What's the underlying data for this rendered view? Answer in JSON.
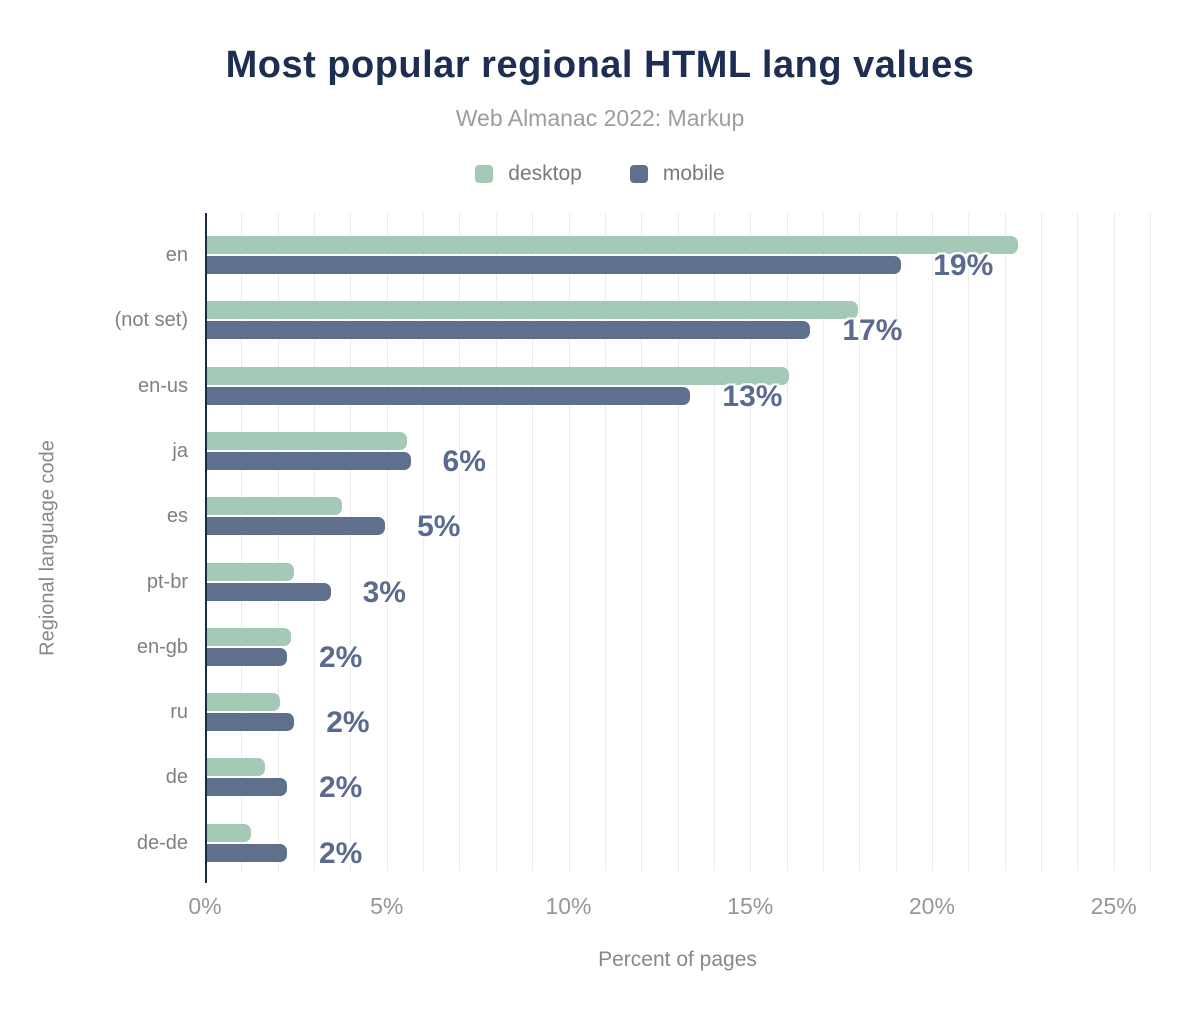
{
  "title": "Most popular regional HTML lang values",
  "subtitle": "Web Almanac 2022: Markup",
  "legend": [
    {
      "label": "desktop",
      "color": "#a5c9b7"
    },
    {
      "label": "mobile",
      "color": "#5f708c"
    }
  ],
  "colors": {
    "title_navy": "#1e2e52",
    "axis_line": "#1b2a47",
    "desktop_bar": "#a5c9b7",
    "mobile_bar": "#5f708c",
    "value_label": "#5a6b8f",
    "gridline": "#ececec",
    "muted_text": "#85888d"
  },
  "chart_data": {
    "type": "bar",
    "orientation": "horizontal",
    "title": "Most popular regional HTML lang values",
    "subtitle": "Web Almanac 2022: Markup",
    "xlabel": "Percent of pages",
    "ylabel": "Regional language code",
    "categories": [
      "en",
      "(not set)",
      "en-us",
      "ja",
      "es",
      "pt-br",
      "en-gb",
      "ru",
      "de",
      "de-de"
    ],
    "series": [
      {
        "name": "desktop",
        "color": "#a5c9b7",
        "values": [
          22.3,
          17.9,
          16.0,
          5.5,
          3.7,
          2.4,
          2.3,
          2.0,
          1.6,
          1.2
        ]
      },
      {
        "name": "mobile",
        "color": "#5f708c",
        "values": [
          19.1,
          16.6,
          13.3,
          5.6,
          4.9,
          3.4,
          2.2,
          2.4,
          2.2,
          2.2
        ]
      }
    ],
    "bar_labels": [
      "19%",
      "17%",
      "13%",
      "6%",
      "5%",
      "3%",
      "2%",
      "2%",
      "2%",
      "2%"
    ],
    "xticks": [
      "0%",
      "5%",
      "10%",
      "15%",
      "20%",
      "25%"
    ],
    "xtick_values": [
      0,
      5,
      10,
      15,
      20,
      25
    ],
    "xlim": [
      0,
      26
    ],
    "grid": "vertical gridlines every 1%",
    "legend_position": "top center"
  }
}
